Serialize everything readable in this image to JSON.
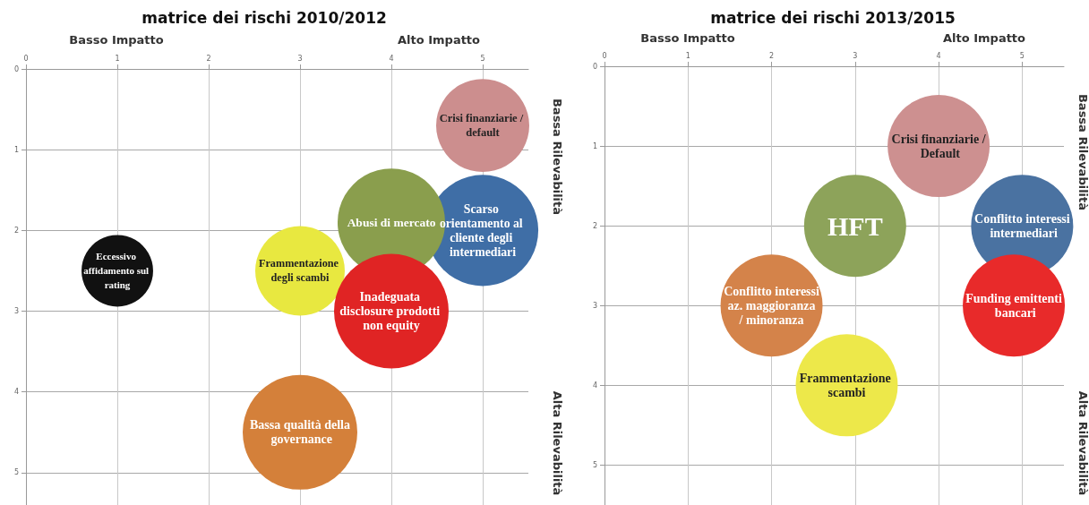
{
  "chart_data": [
    {
      "type": "bubble",
      "title": "matrice dei rischi 2010/2012",
      "annotations": [
        "Basso Impatto",
        "Alto Impatto",
        "Bassa Rilevabilità",
        "Alta Rilevabilità"
      ],
      "xlim": [
        0,
        5.5
      ],
      "xticks": [
        0,
        1,
        2,
        3,
        4,
        5
      ],
      "ylim": [
        5.4,
        0
      ],
      "yticks": [
        0,
        1,
        2,
        3,
        4,
        5
      ],
      "grid": true,
      "series": [
        {
          "name": "Crisi finanziarie / default",
          "color": "#cc8e8e",
          "x": [
            5
          ],
          "values": [
            0.7
          ],
          "sizes": [
            0.66
          ]
        },
        {
          "name": "Scarso orientamento al cliente degli intermediari",
          "color": "#3f6ea6",
          "x": [
            5
          ],
          "values": [
            2
          ],
          "sizes": [
            0.94
          ]
        },
        {
          "name": "Abusi di mercato",
          "color": "#8a9e4d",
          "x": [
            4
          ],
          "values": [
            1.9
          ],
          "sizes": [
            0.88
          ]
        },
        {
          "name": "Eccessivo affidamento sul rating",
          "color": "#111111",
          "x": [
            1
          ],
          "values": [
            2.5
          ],
          "sizes": [
            0.39
          ]
        },
        {
          "name": "Frammentazione degli scambi",
          "color": "#e8e840",
          "x": [
            3
          ],
          "values": [
            2.5
          ],
          "sizes": [
            0.61
          ]
        },
        {
          "name": "Inadeguata disclosure prodotti non equity",
          "color": "#e02424",
          "x": [
            4
          ],
          "values": [
            3
          ],
          "sizes": [
            1
          ]
        },
        {
          "name": "Bassa qualità della governance",
          "color": "#d4803a",
          "x": [
            3
          ],
          "values": [
            4.5
          ],
          "sizes": [
            1
          ]
        }
      ]
    },
    {
      "type": "bubble",
      "title": "matrice dei rischi 2013/2015",
      "annotations": [
        "Basso Impatto",
        "Alto Impatto",
        "Bassa Rilevabilità",
        "Alta Rilevabilità"
      ],
      "xlim": [
        0,
        5.5
      ],
      "xticks": [
        0,
        1,
        2,
        3,
        4,
        5
      ],
      "ylim": [
        5.5,
        0
      ],
      "yticks": [
        0,
        1,
        2,
        3,
        4,
        5
      ],
      "grid": true,
      "series": [
        {
          "name": "Crisi finanziarie / Default",
          "color": "#cd9090",
          "x": [
            4
          ],
          "values": [
            1
          ],
          "sizes": [
            1
          ]
        },
        {
          "name": "HFT",
          "color": "#8da35a",
          "x": [
            3
          ],
          "values": [
            2
          ],
          "sizes": [
            1
          ]
        },
        {
          "name": "Conflitto interessi intermediari",
          "color": "#4a72a1",
          "x": [
            5
          ],
          "values": [
            2
          ],
          "sizes": [
            1
          ]
        },
        {
          "name": "Conflitto interessi az. maggioranza / minoranza",
          "color": "#d4834a",
          "x": [
            2
          ],
          "values": [
            3
          ],
          "sizes": [
            1
          ]
        },
        {
          "name": "Funding emittenti bancari",
          "color": "#e82a2a",
          "x": [
            4.9
          ],
          "values": [
            3
          ],
          "sizes": [
            1
          ]
        },
        {
          "name": "Frammentazione scambi",
          "color": "#ede84a",
          "x": [
            2.9
          ],
          "values": [
            4
          ],
          "sizes": [
            1
          ]
        }
      ]
    }
  ]
}
